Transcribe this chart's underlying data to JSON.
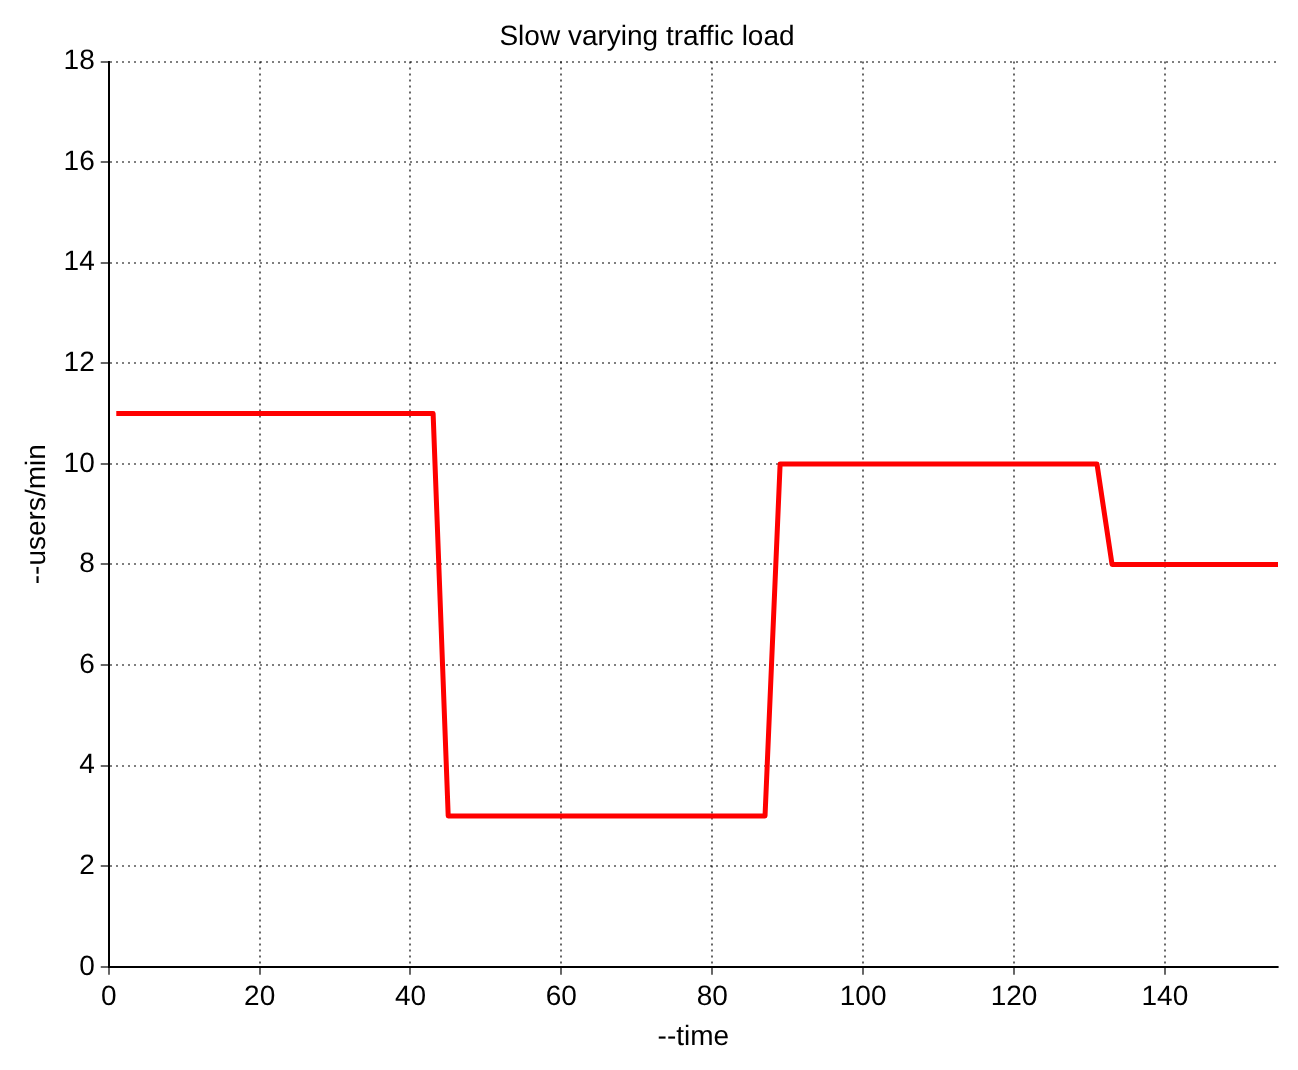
{
  "chart_data": {
    "type": "line",
    "title": "Slow varying traffic load",
    "xlabel": "--time",
    "ylabel": "--users/min",
    "x": [
      1,
      43,
      45,
      87,
      89,
      131,
      133,
      155
    ],
    "series": [
      {
        "color": "#ff0000",
        "values": [
          11,
          11,
          3,
          3,
          10,
          10,
          8,
          8
        ]
      }
    ],
    "xlim": [
      0,
      155
    ],
    "xticks": [
      0,
      20,
      40,
      60,
      80,
      100,
      120,
      140
    ],
    "ylim": [
      0,
      18
    ],
    "yticks": [
      0,
      2,
      4,
      6,
      8,
      10,
      12,
      14,
      16,
      18
    ],
    "grid": true,
    "legend": false,
    "marker": "none",
    "line_style": "solid"
  }
}
